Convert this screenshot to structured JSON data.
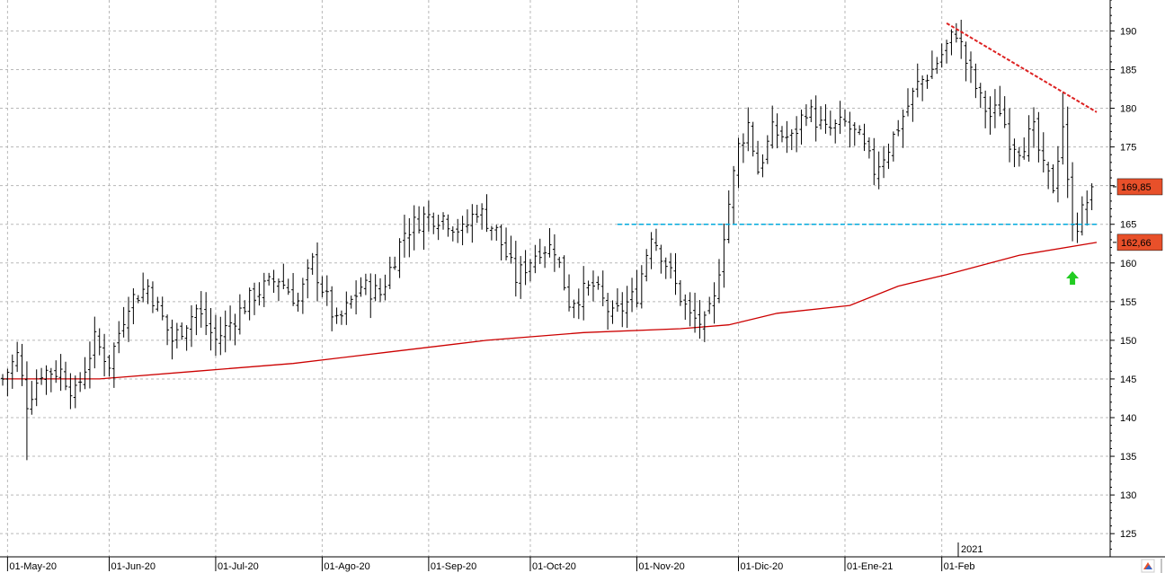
{
  "chart_data": {
    "type": "ohlc-bar",
    "title": "",
    "xlabel": "",
    "ylabel": "",
    "ylim": [
      122,
      194
    ],
    "yticks": [
      125,
      130,
      135,
      140,
      145,
      150,
      155,
      160,
      165,
      170,
      175,
      180,
      185,
      190
    ],
    "xtick_labels": [
      "01-May-20",
      "01-Jun-20",
      "01-Jul-20",
      "01-Ago-20",
      "01-Sep-20",
      "01-Oct-20",
      "01-Nov-20",
      "01-Dic-20",
      "01-Ene-21",
      "01-Feb"
    ],
    "year_label": "2021",
    "grid": true,
    "price_badges": [
      {
        "label": "169,85",
        "value": 169.85
      },
      {
        "label": "162,66",
        "value": 162.66
      }
    ],
    "colors": {
      "bars": "#000000",
      "moving_average": "#cc0000",
      "support_line": "#00aadd",
      "trend_line": "#dd2222",
      "signal_arrow": "#22cc22",
      "badge_fill": "#e8502a",
      "grid": "#b8b8b8"
    },
    "bar_anchors": [
      {
        "t": 0,
        "c": 145
      },
      {
        "t": 3,
        "c": 148
      },
      {
        "t": 5,
        "c": 142
      },
      {
        "t": 8,
        "c": 146
      },
      {
        "t": 12,
        "c": 146
      },
      {
        "t": 15,
        "c": 143
      },
      {
        "t": 19,
        "c": 150
      },
      {
        "t": 22,
        "c": 147
      },
      {
        "t": 26,
        "c": 155
      },
      {
        "t": 30,
        "c": 157
      },
      {
        "t": 35,
        "c": 150
      },
      {
        "t": 40,
        "c": 154
      },
      {
        "t": 44,
        "c": 150
      },
      {
        "t": 48,
        "c": 153
      },
      {
        "t": 52,
        "c": 156
      },
      {
        "t": 57,
        "c": 158
      },
      {
        "t": 61,
        "c": 155
      },
      {
        "t": 64,
        "c": 160
      },
      {
        "t": 69,
        "c": 152
      },
      {
        "t": 74,
        "c": 157
      },
      {
        "t": 78,
        "c": 156
      },
      {
        "t": 83,
        "c": 164
      },
      {
        "t": 87,
        "c": 166
      },
      {
        "t": 91,
        "c": 166
      },
      {
        "t": 95,
        "c": 164
      },
      {
        "t": 98,
        "c": 167
      },
      {
        "t": 102,
        "c": 164
      },
      {
        "t": 106,
        "c": 158
      },
      {
        "t": 111,
        "c": 162
      },
      {
        "t": 114,
        "c": 162
      },
      {
        "t": 117,
        "c": 155
      },
      {
        "t": 122,
        "c": 157
      },
      {
        "t": 126,
        "c": 153
      },
      {
        "t": 131,
        "c": 156
      },
      {
        "t": 134,
        "c": 164
      },
      {
        "t": 137,
        "c": 160
      },
      {
        "t": 139,
        "c": 157
      },
      {
        "t": 142,
        "c": 153
      },
      {
        "t": 145,
        "c": 152
      },
      {
        "t": 147,
        "c": 155
      },
      {
        "t": 149,
        "c": 164
      },
      {
        "t": 152,
        "c": 175
      },
      {
        "t": 154,
        "c": 178
      },
      {
        "t": 156,
        "c": 172
      },
      {
        "t": 159,
        "c": 177
      },
      {
        "t": 163,
        "c": 176
      },
      {
        "t": 166,
        "c": 180
      },
      {
        "t": 170,
        "c": 177
      },
      {
        "t": 174,
        "c": 178
      },
      {
        "t": 177,
        "c": 176
      },
      {
        "t": 180,
        "c": 172
      },
      {
        "t": 183,
        "c": 175
      },
      {
        "t": 186,
        "c": 179
      },
      {
        "t": 189,
        "c": 183
      },
      {
        "t": 192,
        "c": 185
      },
      {
        "t": 195,
        "c": 188
      },
      {
        "t": 197,
        "c": 190
      },
      {
        "t": 199,
        "c": 186
      },
      {
        "t": 202,
        "c": 181
      },
      {
        "t": 204,
        "c": 179
      },
      {
        "t": 206,
        "c": 180
      },
      {
        "t": 208,
        "c": 176
      },
      {
        "t": 210,
        "c": 175
      },
      {
        "t": 213,
        "c": 177
      },
      {
        "t": 215,
        "c": 172
      },
      {
        "t": 217,
        "c": 170
      },
      {
        "t": 219,
        "c": 178
      },
      {
        "t": 220,
        "c": 170
      },
      {
        "t": 221,
        "c": 166
      },
      {
        "t": 222,
        "c": 165
      },
      {
        "t": 224,
        "c": 168
      },
      {
        "t": 225,
        "c": 169.85
      }
    ],
    "moving_average": [
      {
        "t": 0,
        "v": 145
      },
      {
        "t": 20,
        "v": 145
      },
      {
        "t": 40,
        "v": 146
      },
      {
        "t": 60,
        "v": 147
      },
      {
        "t": 80,
        "v": 148.5
      },
      {
        "t": 100,
        "v": 150
      },
      {
        "t": 120,
        "v": 151
      },
      {
        "t": 140,
        "v": 151.5
      },
      {
        "t": 150,
        "v": 152
      },
      {
        "t": 160,
        "v": 153.5
      },
      {
        "t": 175,
        "v": 154.5
      },
      {
        "t": 185,
        "v": 157
      },
      {
        "t": 195,
        "v": 158.5
      },
      {
        "t": 210,
        "v": 161
      },
      {
        "t": 226,
        "v": 162.66
      }
    ],
    "support_level": 165,
    "trend_line": {
      "from": {
        "t": 195,
        "v": 191
      },
      "to": {
        "t": 226,
        "v": 179.5
      }
    },
    "signal_arrow": {
      "t": 221,
      "v": 158
    },
    "x_domain": [
      0,
      226
    ]
  }
}
